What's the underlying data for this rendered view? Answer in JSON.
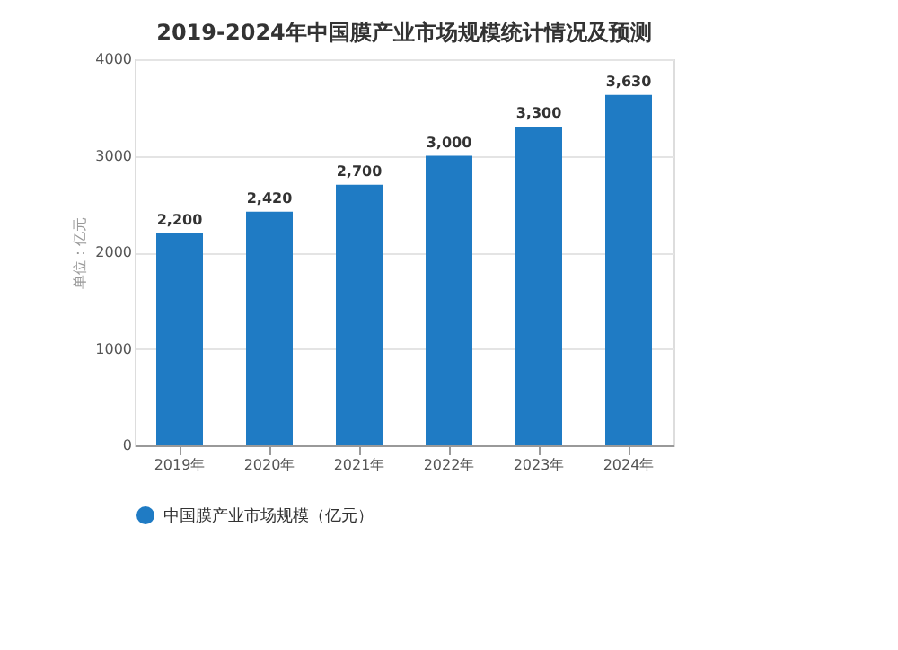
{
  "chart_data": {
    "type": "bar",
    "title": "2019-2024年中国膜产业市场规模统计情况及预测",
    "ylabel": "单位：亿元",
    "categories": [
      "2019年",
      "2020年",
      "2021年",
      "2022年",
      "2023年",
      "2024年"
    ],
    "series": [
      {
        "name": "中国膜产业市场规模（亿元）",
        "color": "#1f7bc4",
        "values": [
          2200,
          2420,
          2700,
          3000,
          3300,
          3630
        ],
        "value_labels": [
          "2,200",
          "2,420",
          "2,700",
          "3,000",
          "3,300",
          "3,630"
        ]
      }
    ],
    "ylim": [
      0,
      4000
    ],
    "yticks": [
      0,
      1000,
      2000,
      3000,
      4000
    ],
    "grid": "y",
    "legend": "bottom"
  }
}
